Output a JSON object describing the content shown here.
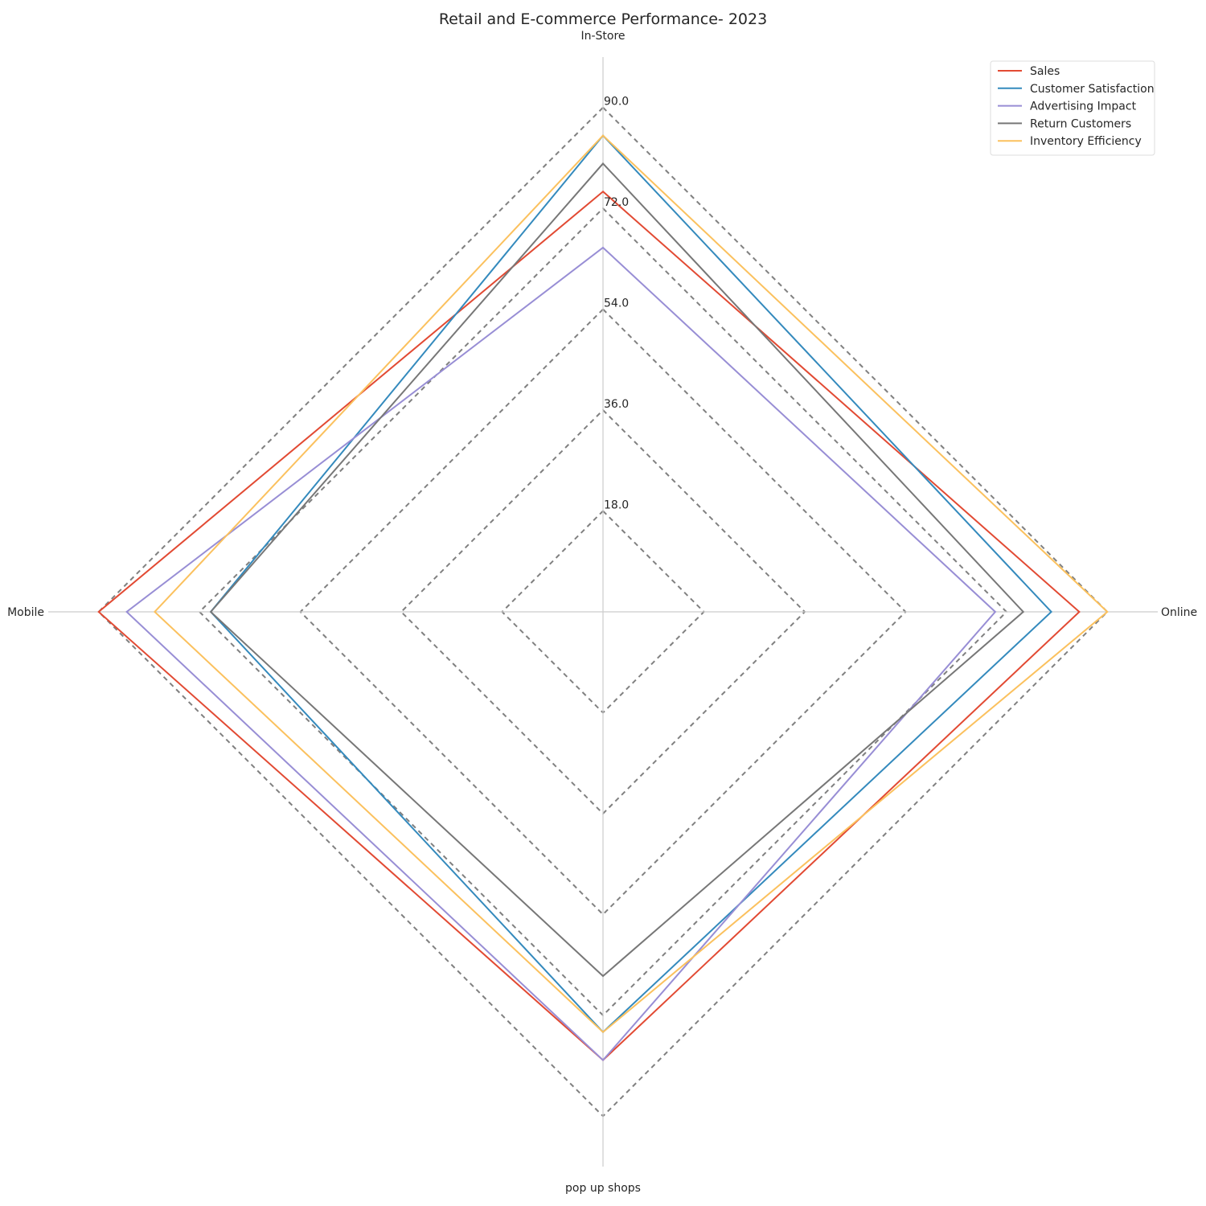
{
  "chart_data": {
    "type": "radar",
    "title": "Retail and E-commerce Performance- 2023",
    "categories": [
      "In-Store",
      "Online",
      "pop up shops",
      "Mobile"
    ],
    "r_ticks": [
      18.0,
      36.0,
      54.0,
      72.0,
      90.0
    ],
    "r_tick_labels": [
      "18.0",
      "36.0",
      "54.0",
      "72.0",
      "90.0"
    ],
    "r_max": 99,
    "grid_style": "dashed",
    "legend_position": "top-right",
    "series": [
      {
        "name": "Sales",
        "color": "#E24A33",
        "values": [
          75,
          85,
          80,
          90
        ]
      },
      {
        "name": "Customer Satisfaction",
        "color": "#348ABD",
        "values": [
          85,
          80,
          75,
          70
        ]
      },
      {
        "name": "Advertising Impact",
        "color": "#988ED5",
        "values": [
          65,
          70,
          80,
          85
        ]
      },
      {
        "name": "Return Customers",
        "color": "#777777",
        "values": [
          80,
          75,
          65,
          70
        ]
      },
      {
        "name": "Inventory Efficiency",
        "color": "#FBC15E",
        "values": [
          85,
          90,
          75,
          80
        ]
      }
    ]
  }
}
